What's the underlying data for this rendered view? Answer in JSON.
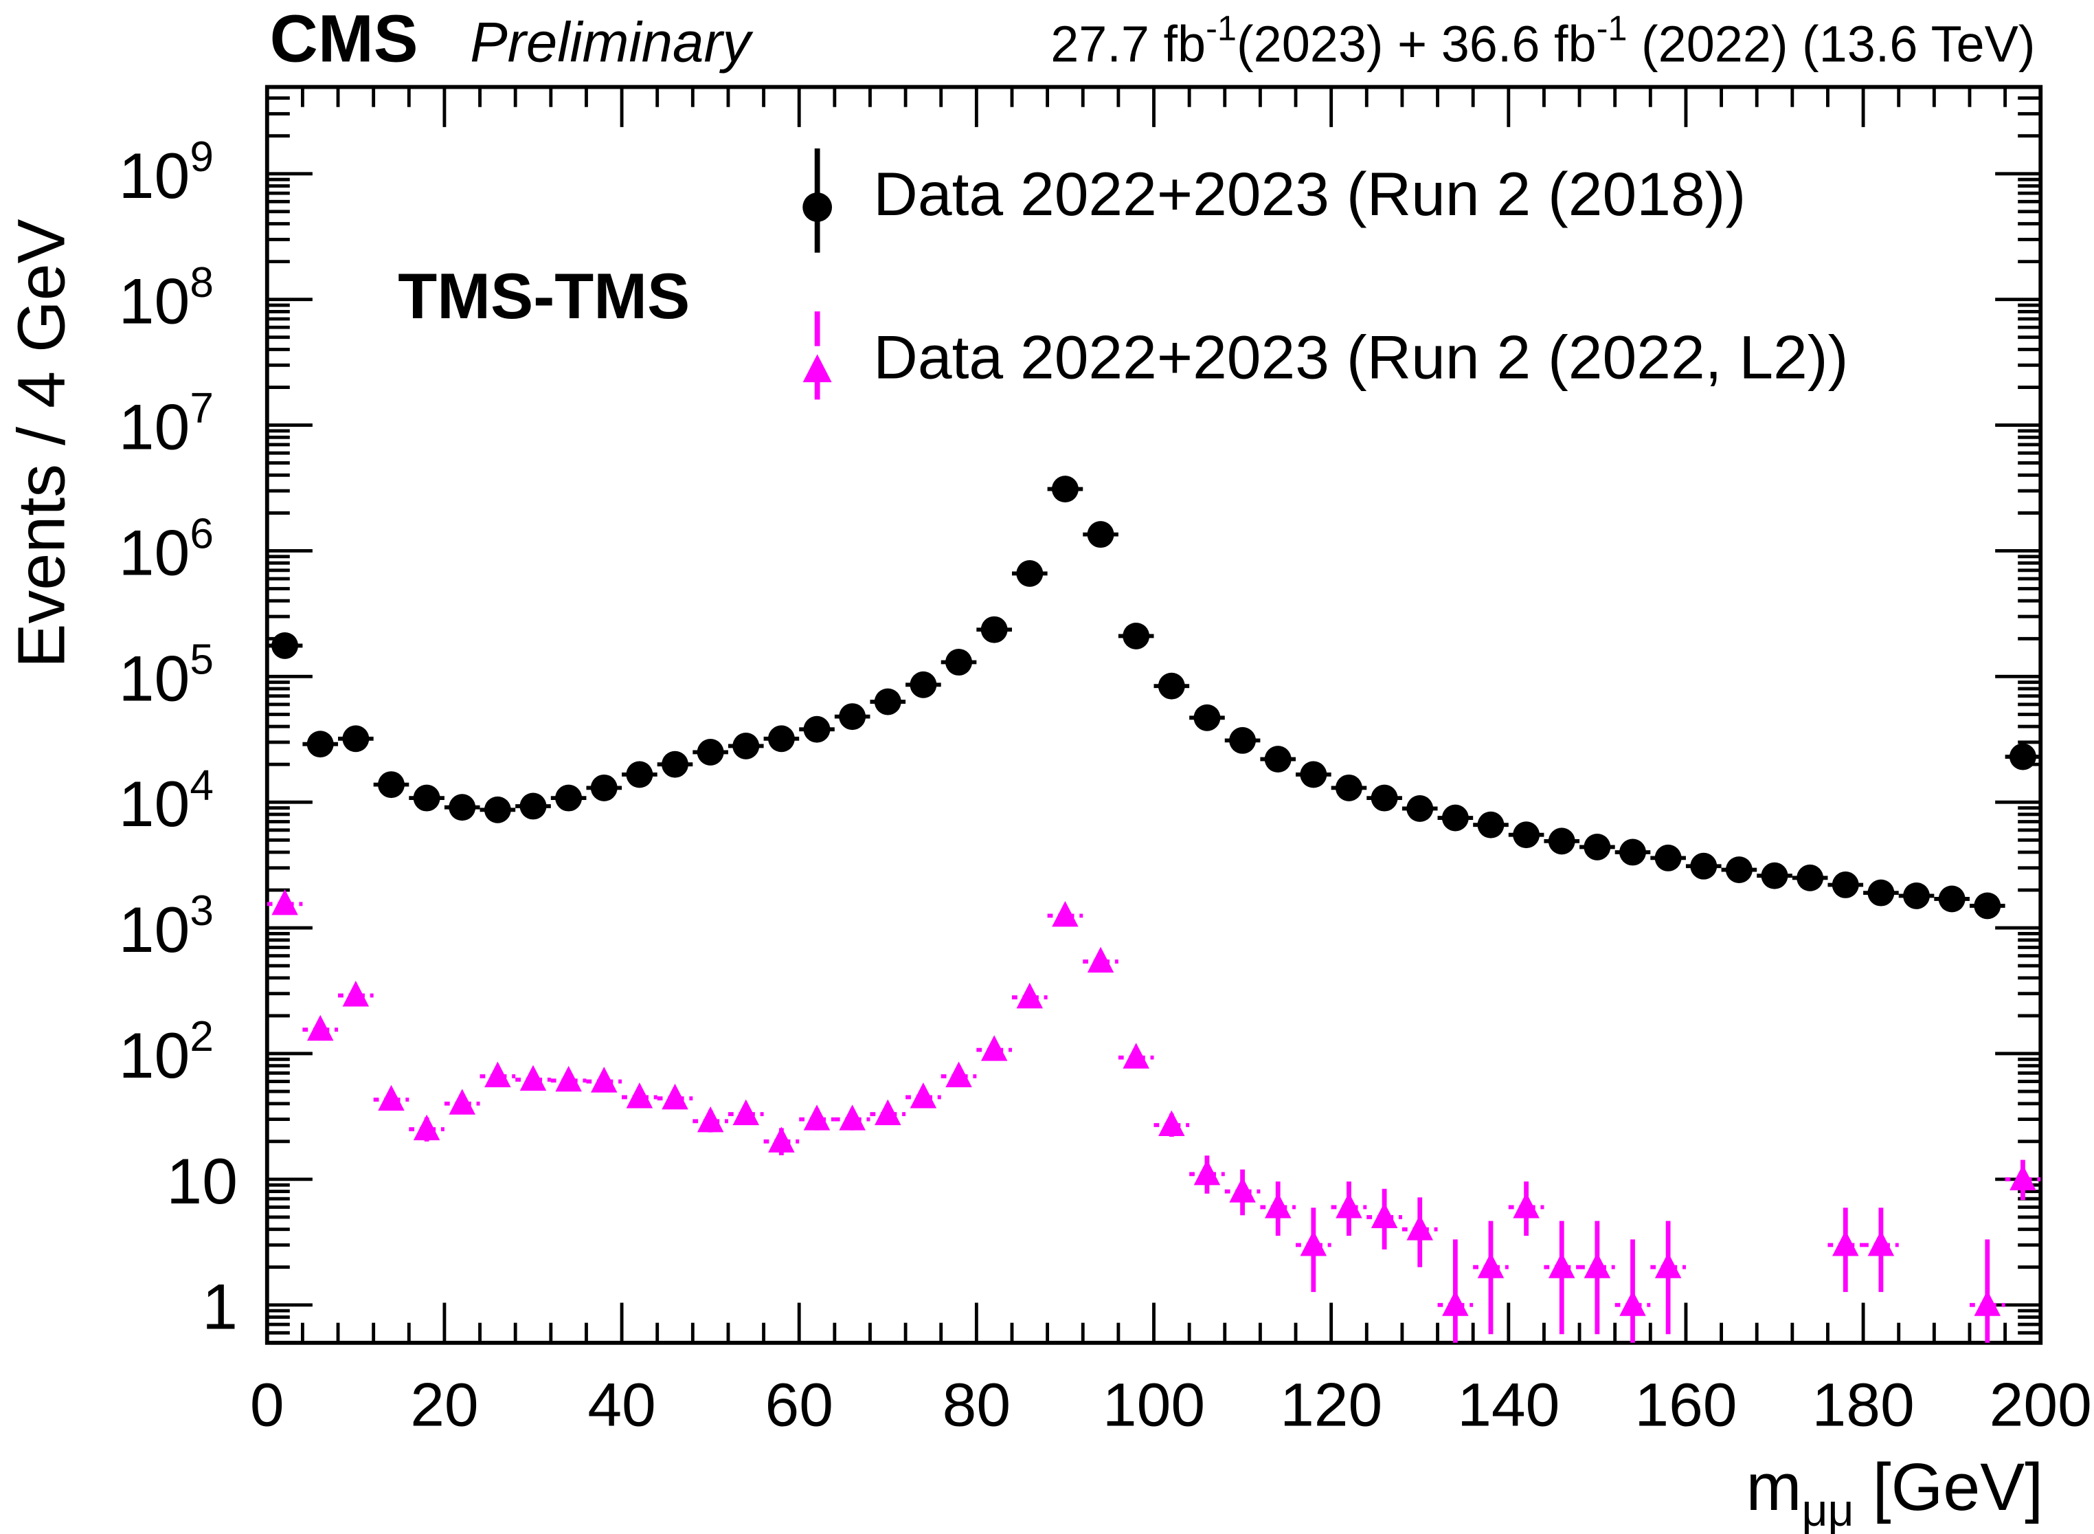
{
  "chart_data": {
    "type": "scatter",
    "title": {
      "experiment": "CMS",
      "status": "Preliminary",
      "lumi_parts": [
        {
          "text": "27.7 fb"
        },
        {
          "sup": "-1"
        },
        {
          "text": "(2023) + 36.6 fb"
        },
        {
          "sup": "-1"
        },
        {
          "text": " (2022) (13.6 TeV)"
        }
      ]
    },
    "annotation": "TMS-TMS",
    "xlabel": {
      "main": "m",
      "sub": "μμ",
      "unit": " [GeV]"
    },
    "ylabel": "Events / 4 GeV",
    "xlim": [
      0,
      200
    ],
    "ylim": [
      0.5,
      4900000000.0
    ],
    "yscale": "log",
    "x_ticks": [
      0,
      20,
      40,
      60,
      80,
      100,
      120,
      140,
      160,
      180,
      200
    ],
    "x_tick_labels": [
      "0",
      "20",
      "40",
      "60",
      "80",
      "100",
      "120",
      "140",
      "160",
      "180",
      "200"
    ],
    "y_ticks": [
      {
        "value": 1000000000.0,
        "base": "10",
        "exp": "9"
      },
      {
        "value": 100000000.0,
        "base": "10",
        "exp": "8"
      },
      {
        "value": 10000000.0,
        "base": "10",
        "exp": "7"
      },
      {
        "value": 1000000.0,
        "base": "10",
        "exp": "6"
      },
      {
        "value": 100000.0,
        "base": "10",
        "exp": "5"
      },
      {
        "value": 10000.0,
        "base": "10",
        "exp": "4"
      },
      {
        "value": 1000.0,
        "base": "10",
        "exp": "3"
      },
      {
        "value": 100.0,
        "base": "10",
        "exp": "2"
      },
      {
        "value": 10,
        "base": "10",
        "exp": ""
      },
      {
        "value": 1,
        "base": "1",
        "exp": ""
      }
    ],
    "bin_width": 4,
    "legend_position": "top-right",
    "series": [
      {
        "name": "Data 2022+2023 (Run 2 (2018))",
        "marker": "circle",
        "color": "#000000",
        "x": [
          2,
          6,
          10,
          14,
          18,
          22,
          26,
          30,
          34,
          38,
          42,
          46,
          50,
          54,
          58,
          62,
          66,
          70,
          74,
          78,
          82,
          86,
          90,
          94,
          98,
          102,
          106,
          110,
          114,
          118,
          122,
          126,
          130,
          134,
          138,
          142,
          146,
          150,
          154,
          158,
          162,
          166,
          170,
          174,
          178,
          182,
          186,
          190,
          194,
          198
        ],
        "y": [
          176000,
          29000,
          32000,
          13800,
          10800,
          9100,
          8700,
          9300,
          10800,
          13000,
          16600,
          20000,
          25000,
          28000,
          32000,
          38000,
          48000,
          63000,
          86000,
          130000,
          236000,
          660000,
          3100000,
          1350000,
          210000,
          84000,
          47000,
          31000,
          22000,
          16600,
          13000,
          10800,
          8900,
          7500,
          6600,
          5500,
          4900,
          4400,
          4000,
          3600,
          3100,
          2900,
          2600,
          2500,
          2200,
          1900,
          1800,
          1700,
          1500,
          23000
        ]
      },
      {
        "name": "Data 2022+2023 (Run 2 (2022, L2))",
        "marker": "triangle",
        "color": "#ff00ff",
        "x": [
          2,
          6,
          10,
          14,
          18,
          22,
          26,
          30,
          34,
          38,
          42,
          46,
          50,
          54,
          58,
          62,
          66,
          70,
          74,
          78,
          82,
          86,
          90,
          94,
          98,
          102,
          106,
          110,
          114,
          118,
          122,
          126,
          130,
          134,
          138,
          142,
          146,
          150,
          154,
          158,
          178,
          182,
          194,
          198
        ],
        "y": [
          1550,
          155,
          290,
          43,
          25,
          40,
          66,
          62,
          61,
          60,
          45,
          44,
          29,
          33,
          20,
          30,
          30,
          33,
          45,
          66,
          107,
          280,
          1250,
          540,
          93,
          27,
          11,
          8,
          6,
          3,
          6,
          5,
          4,
          1,
          2,
          6,
          2,
          2,
          1,
          2,
          3,
          3,
          1,
          10
        ]
      }
    ]
  }
}
